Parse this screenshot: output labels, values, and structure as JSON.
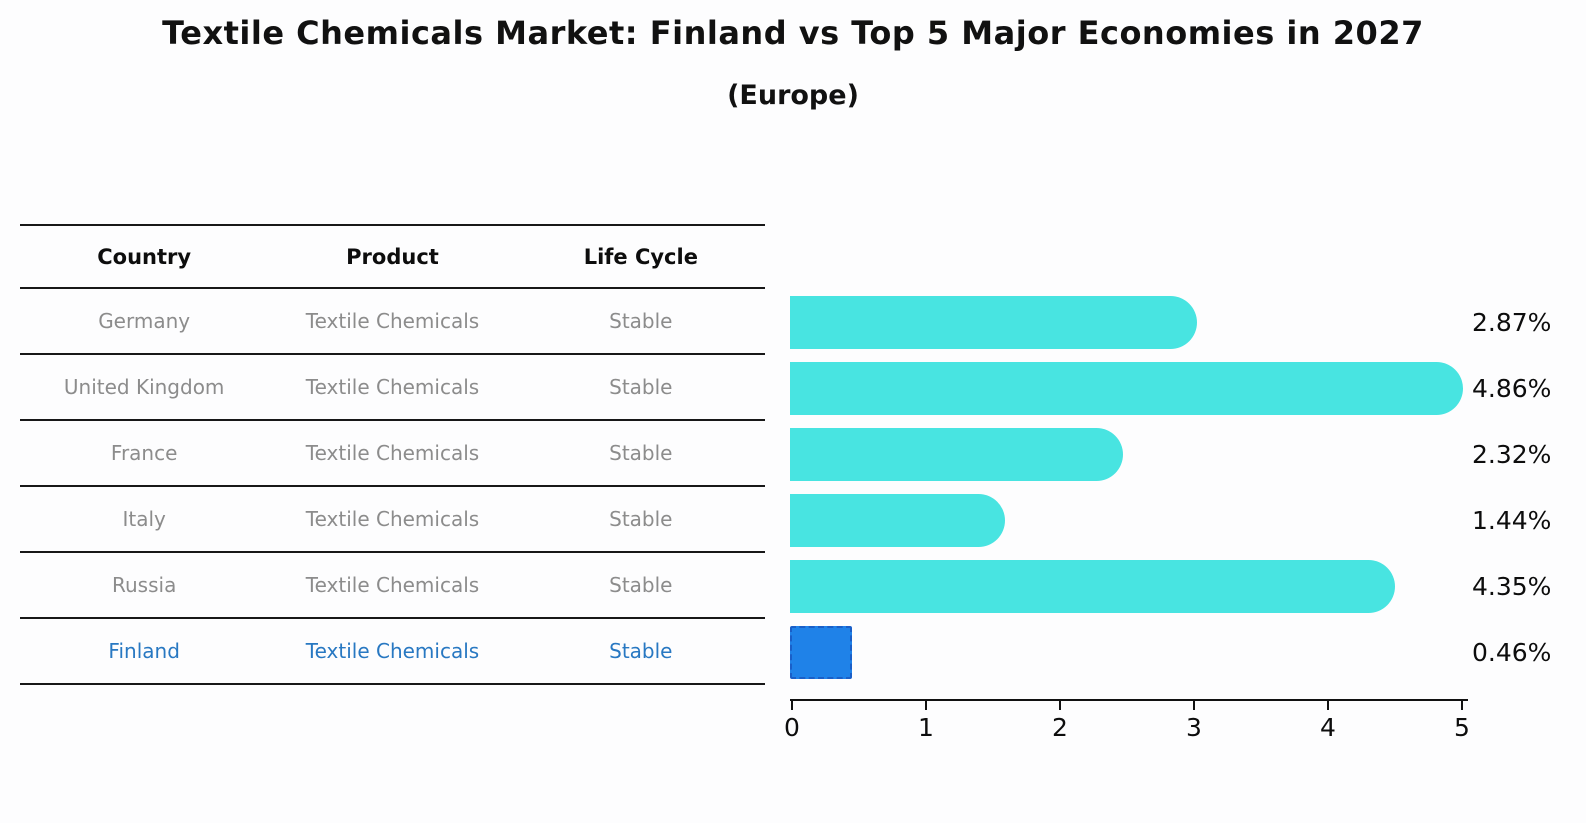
{
  "title": "Textile Chemicals Market: Finland vs Top 5 Major Economies in 2027",
  "subtitle": "(Europe)",
  "table": {
    "headers": [
      "Country",
      "Product",
      "Life Cycle"
    ],
    "rows": [
      {
        "country": "Germany",
        "product": "Textile Chemicals",
        "life_cycle": "Stable",
        "highlight": false
      },
      {
        "country": "United Kingdom",
        "product": "Textile Chemicals",
        "life_cycle": "Stable",
        "highlight": false
      },
      {
        "country": "France",
        "product": "Textile Chemicals",
        "life_cycle": "Stable",
        "highlight": false
      },
      {
        "country": "Italy",
        "product": "Textile Chemicals",
        "life_cycle": "Stable",
        "highlight": false
      },
      {
        "country": "Russia",
        "product": "Textile Chemicals",
        "life_cycle": "Stable",
        "highlight": false
      },
      {
        "country": "Finland",
        "product": "Textile Chemicals",
        "life_cycle": "Stable",
        "highlight": true
      }
    ]
  },
  "chart_data": {
    "type": "bar",
    "orientation": "horizontal",
    "title": "Textile Chemicals Market: Finland vs Top 5 Major Economies in 2027",
    "subtitle": "(Europe)",
    "categories": [
      "Germany",
      "United Kingdom",
      "France",
      "Italy",
      "Russia",
      "Finland"
    ],
    "values": [
      2.87,
      4.86,
      2.32,
      1.44,
      4.35,
      0.46
    ],
    "value_labels": [
      "2.87%",
      "4.86%",
      "2.32%",
      "1.44%",
      "4.35%",
      "0.46%"
    ],
    "xlabel": "",
    "ylabel": "",
    "xlim": [
      0,
      5
    ],
    "xticks": [
      "0",
      "1",
      "2",
      "3",
      "4",
      "5"
    ],
    "grid": false,
    "legend": false,
    "highlight_category": "Finland",
    "bar_color": "#48e4e1",
    "highlight_bar_color": "#1f82e8",
    "highlight_border_color": "#1a5fc8"
  },
  "colors": {
    "row_text": "#8c8c8c",
    "highlight_text": "#2878c2",
    "axis": "#111111",
    "text": "#0d0d0d",
    "background": "#fdfdfe"
  }
}
